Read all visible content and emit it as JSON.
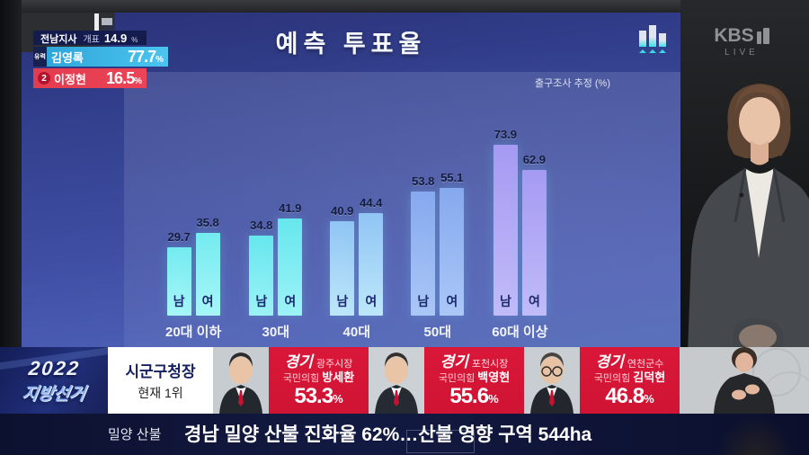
{
  "accent_colors": {
    "screen_blue": "#3e4da2",
    "leading_cyan": "#3fb9e9",
    "candidate2_red": "#e84052",
    "lower_third_red": "#d41537",
    "ticker_navy": "#0d1130"
  },
  "scoreboard": {
    "region": "전남지사",
    "count_label": "개표",
    "count_value": "14.9",
    "percent_sign": "%",
    "candidates": [
      {
        "badge": "유력",
        "name": "김영록",
        "value": "77.7"
      },
      {
        "badge": "2",
        "name": "이정현",
        "value": "16.5"
      }
    ]
  },
  "header": {
    "title": "예측 투표율"
  },
  "chart_data": {
    "type": "bar",
    "title": "예측 투표율",
    "note": "출구조사 추정 (%)",
    "categories": [
      "20대 이하",
      "30대",
      "40대",
      "50대",
      "60대 이상"
    ],
    "series": [
      {
        "name": "남",
        "values": [
          29.7,
          34.8,
          40.9,
          53.8,
          73.9
        ]
      },
      {
        "name": "여",
        "values": [
          35.8,
          41.9,
          44.4,
          55.1,
          62.9
        ]
      }
    ],
    "ylim": [
      0,
      80
    ],
    "grid": false,
    "legend_position": "inside-bars",
    "group_colors": [
      [
        "#74ebf0",
        "#a7f6f8"
      ],
      [
        "#66e7ee",
        "#9cf3f6"
      ],
      [
        "#90c5f4",
        "#bde7fa"
      ],
      [
        "#86a9ef",
        "#aac7f6"
      ],
      [
        "#a59af3",
        "#c1bbf8"
      ]
    ],
    "value_label_color": "#141c3e",
    "gender_label_color": "#1b2a6e"
  },
  "broadcaster": {
    "name": "KBS",
    "channel": "1",
    "live": "LIVE"
  },
  "lower_third": {
    "election_logo": {
      "line1": "2022",
      "line2": "지방선거"
    },
    "race_box": {
      "title": "시군구청장",
      "subtitle": "현재 1위"
    },
    "leaders": [
      {
        "province": "경기",
        "office": "광주시장",
        "party": "국민의힘",
        "name": "방세환",
        "value": "53.3"
      },
      {
        "province": "경기",
        "office": "포천시장",
        "party": "국민의힘",
        "name": "백영현",
        "value": "55.6"
      },
      {
        "province": "경기",
        "office": "연천군수",
        "party": "국민의힘",
        "name": "김덕현",
        "value": "46.8"
      }
    ]
  },
  "ticker": {
    "tag": "밀양 산불",
    "text": "경남 밀양 산불 진화율 62%…산불 영향 구역 544ha"
  }
}
